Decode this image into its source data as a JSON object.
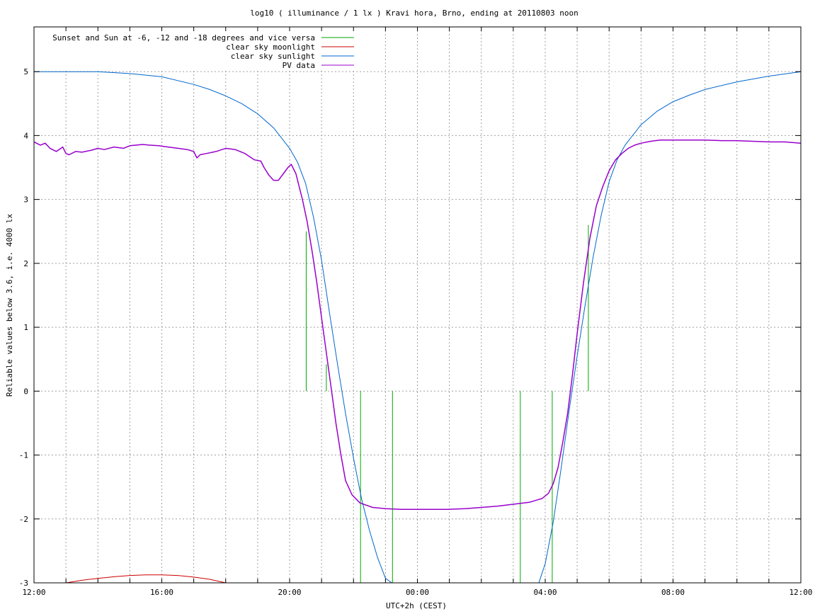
{
  "chart_data": {
    "type": "line",
    "title": "log10 ( illuminance / 1 lx ) Kravi hora, Brno, ending at 20110803 noon",
    "xlabel": "UTC+2h (CEST)",
    "ylabel": "Reliable values below 3.6, i.e. 4000 lx",
    "x_unit": "hours since 12:00 on the starting day",
    "xlim": [
      0,
      24
    ],
    "ylim": [
      -3,
      5.7
    ],
    "x_ticks": [
      {
        "value": 0,
        "label": "12:00"
      },
      {
        "value": 4,
        "label": "16:00"
      },
      {
        "value": 8,
        "label": "20:00"
      },
      {
        "value": 12,
        "label": "00:00"
      },
      {
        "value": 16,
        "label": "04:00"
      },
      {
        "value": 20,
        "label": "08:00"
      },
      {
        "value": 24,
        "label": "12:00"
      }
    ],
    "y_ticks": [
      {
        "value": -3,
        "label": "-3"
      },
      {
        "value": -2,
        "label": "-2"
      },
      {
        "value": -1,
        "label": "-1"
      },
      {
        "value": 0,
        "label": "0"
      },
      {
        "value": 1,
        "label": "1"
      },
      {
        "value": 2,
        "label": "2"
      },
      {
        "value": 3,
        "label": "3"
      },
      {
        "value": 4,
        "label": "4"
      },
      {
        "value": 5,
        "label": "5"
      }
    ],
    "grid": true,
    "legend_position": "top-left",
    "series": [
      {
        "name": "Sunset and Sun at -6, -12 and -18 degrees and vice versa",
        "style": "vertical-markers",
        "color": "#00aa00",
        "markers": [
          {
            "x": 8.52,
            "y0": 0,
            "y1": 2.5
          },
          {
            "x": 9.15,
            "y0": 0,
            "y1": 0.42
          },
          {
            "x": 10.22,
            "y0": -3,
            "y1": 0
          },
          {
            "x": 11.22,
            "y0": -3,
            "y1": 0
          },
          {
            "x": 15.22,
            "y0": -3,
            "y1": 0
          },
          {
            "x": 16.22,
            "y0": -3,
            "y1": 0
          },
          {
            "x": 17.35,
            "y0": 0,
            "y1": 2.6
          }
        ]
      },
      {
        "name": "clear sky moonlight",
        "color": "#cc0000",
        "x": [
          1.0,
          1.5,
          2.0,
          2.5,
          3.0,
          3.5,
          4.0,
          4.5,
          5.0,
          5.5,
          6.0
        ],
        "y": [
          -3.0,
          -2.96,
          -2.93,
          -2.905,
          -2.885,
          -2.875,
          -2.875,
          -2.885,
          -2.91,
          -2.945,
          -3.0
        ]
      },
      {
        "name": "clear sky sunlight",
        "color": "#0066cc",
        "x": [
          0,
          1,
          2,
          3,
          4,
          4.5,
          5,
          5.5,
          6,
          6.5,
          7,
          7.5,
          8,
          8.25,
          8.5,
          8.75,
          9,
          9.25,
          9.5,
          9.75,
          10,
          10.25,
          10.5,
          10.75,
          11,
          11.2,
          15.8,
          16,
          16.25,
          16.5,
          16.75,
          17,
          17.25,
          17.5,
          17.75,
          18,
          18.25,
          18.5,
          19,
          19.5,
          20,
          20.5,
          21,
          22,
          23,
          24
        ],
        "y": [
          5.0,
          5.0,
          5.0,
          4.97,
          4.92,
          4.86,
          4.8,
          4.72,
          4.62,
          4.5,
          4.34,
          4.12,
          3.8,
          3.58,
          3.25,
          2.72,
          2.05,
          1.22,
          0.42,
          -0.35,
          -1.05,
          -1.68,
          -2.18,
          -2.6,
          -2.93,
          -3.0,
          -3.0,
          -2.7,
          -2.05,
          -1.2,
          -0.3,
          0.55,
          1.35,
          2.1,
          2.75,
          3.28,
          3.62,
          3.85,
          4.17,
          4.38,
          4.53,
          4.63,
          4.72,
          4.84,
          4.93,
          5.0
        ]
      },
      {
        "name": "PV data",
        "color": "#9900cc",
        "x": [
          0,
          0.2,
          0.35,
          0.5,
          0.7,
          0.9,
          1.0,
          1.1,
          1.3,
          1.5,
          1.8,
          2.0,
          2.2,
          2.5,
          2.8,
          3.0,
          3.2,
          3.4,
          3.6,
          3.9,
          4.2,
          4.5,
          4.8,
          5.0,
          5.1,
          5.2,
          5.4,
          5.7,
          6.0,
          6.3,
          6.6,
          6.9,
          7.1,
          7.2,
          7.35,
          7.5,
          7.65,
          7.8,
          7.95,
          8.05,
          8.2,
          8.3,
          8.4,
          8.55,
          8.7,
          8.85,
          9.0,
          9.15,
          9.3,
          9.45,
          9.6,
          9.75,
          9.95,
          10.2,
          10.6,
          11.0,
          11.5,
          12.0,
          12.5,
          13.0,
          13.5,
          14.0,
          14.5,
          15.0,
          15.5,
          15.9,
          16.1,
          16.25,
          16.4,
          16.55,
          16.7,
          16.85,
          17.0,
          17.2,
          17.4,
          17.6,
          17.8,
          18.0,
          18.2,
          18.4,
          18.6,
          18.8,
          19.0,
          19.3,
          19.6,
          20.0,
          20.5,
          21.0,
          21.5,
          22.0,
          22.5,
          23.0,
          23.5,
          24.0
        ],
        "y": [
          3.9,
          3.85,
          3.88,
          3.8,
          3.75,
          3.82,
          3.72,
          3.7,
          3.75,
          3.74,
          3.77,
          3.8,
          3.78,
          3.82,
          3.8,
          3.84,
          3.85,
          3.86,
          3.85,
          3.84,
          3.82,
          3.8,
          3.78,
          3.75,
          3.65,
          3.7,
          3.72,
          3.75,
          3.8,
          3.78,
          3.72,
          3.62,
          3.6,
          3.5,
          3.38,
          3.3,
          3.3,
          3.4,
          3.5,
          3.55,
          3.4,
          3.2,
          3.0,
          2.65,
          2.2,
          1.7,
          1.15,
          0.6,
          0.05,
          -0.5,
          -0.98,
          -1.4,
          -1.62,
          -1.75,
          -1.82,
          -1.84,
          -1.85,
          -1.85,
          -1.85,
          -1.85,
          -1.84,
          -1.82,
          -1.8,
          -1.77,
          -1.74,
          -1.68,
          -1.6,
          -1.45,
          -1.2,
          -0.8,
          -0.35,
          0.25,
          0.9,
          1.7,
          2.4,
          2.9,
          3.2,
          3.45,
          3.62,
          3.72,
          3.8,
          3.85,
          3.88,
          3.91,
          3.93,
          3.93,
          3.93,
          3.93,
          3.92,
          3.92,
          3.91,
          3.9,
          3.9,
          3.88
        ]
      }
    ]
  }
}
